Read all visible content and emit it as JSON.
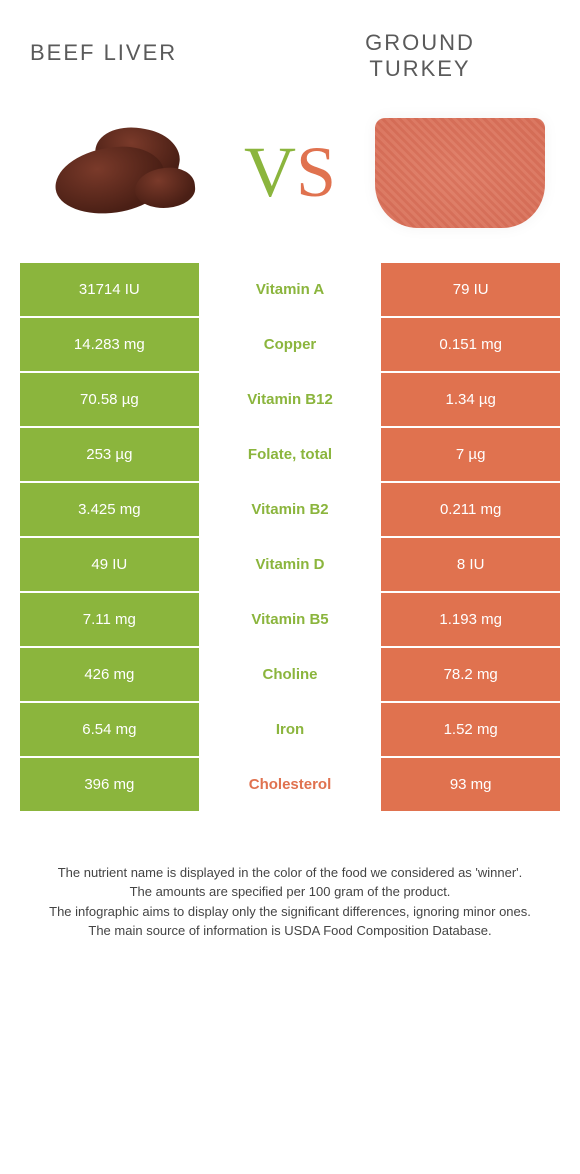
{
  "header": {
    "left_title": "Beef Liver",
    "right_title_line1": "Ground",
    "right_title_line2": "Turkey",
    "vs_v": "V",
    "vs_s": "S"
  },
  "colors": {
    "left": "#8bb53d",
    "right": "#e0724f",
    "text": "#5a5a5a"
  },
  "rows": [
    {
      "left": "31714 IU",
      "name": "Vitamin A",
      "right": "79 IU",
      "winner": "left"
    },
    {
      "left": "14.283 mg",
      "name": "Copper",
      "right": "0.151 mg",
      "winner": "left"
    },
    {
      "left": "70.58 µg",
      "name": "Vitamin B12",
      "right": "1.34 µg",
      "winner": "left"
    },
    {
      "left": "253 µg",
      "name": "Folate, total",
      "right": "7 µg",
      "winner": "left"
    },
    {
      "left": "3.425 mg",
      "name": "Vitamin B2",
      "right": "0.211 mg",
      "winner": "left"
    },
    {
      "left": "49 IU",
      "name": "Vitamin D",
      "right": "8 IU",
      "winner": "left"
    },
    {
      "left": "7.11 mg",
      "name": "Vitamin B5",
      "right": "1.193 mg",
      "winner": "left"
    },
    {
      "left": "426 mg",
      "name": "Choline",
      "right": "78.2 mg",
      "winner": "left"
    },
    {
      "left": "6.54 mg",
      "name": "Iron",
      "right": "1.52 mg",
      "winner": "left"
    },
    {
      "left": "396 mg",
      "name": "Cholesterol",
      "right": "93 mg",
      "winner": "right"
    }
  ],
  "footer": {
    "line1": "The nutrient name is displayed in the color of the food we considered as 'winner'.",
    "line2": "The amounts are specified per 100 gram of the product.",
    "line3": "The infographic aims to display only the significant differences, ignoring minor ones.",
    "line4": "The main source of information is USDA Food Composition Database."
  }
}
